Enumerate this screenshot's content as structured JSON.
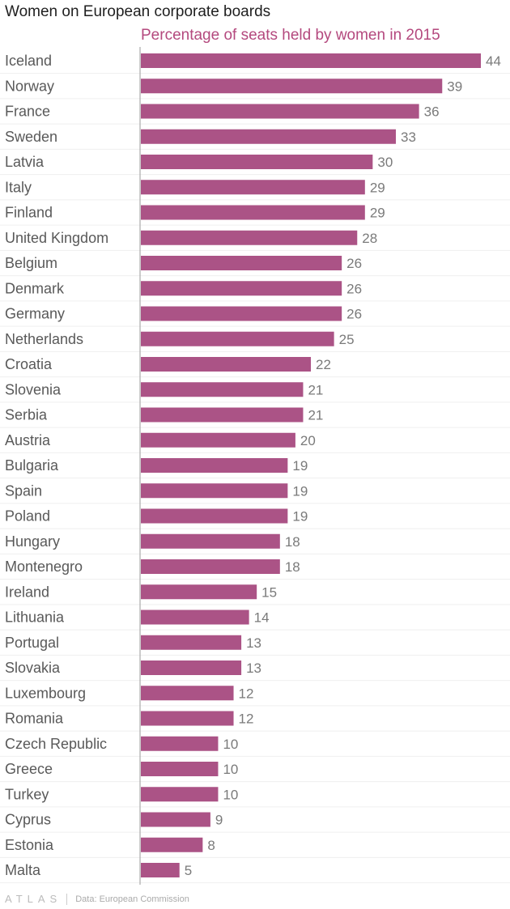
{
  "header": {
    "title": "Women on European corporate boards"
  },
  "chart_data": {
    "type": "bar",
    "orientation": "horizontal",
    "title": "Women on European corporate boards",
    "subtitle": "Percentage of seats held by women in 2015",
    "categories": [
      "Iceland",
      "Norway",
      "France",
      "Sweden",
      "Latvia",
      "Italy",
      "Finland",
      "United Kingdom",
      "Belgium",
      "Denmark",
      "Germany",
      "Netherlands",
      "Croatia",
      "Slovenia",
      "Serbia",
      "Austria",
      "Bulgaria",
      "Spain",
      "Poland",
      "Hungary",
      "Montenegro",
      "Ireland",
      "Lithuania",
      "Portugal",
      "Slovakia",
      "Luxembourg",
      "Romania",
      "Czech Republic",
      "Greece",
      "Turkey",
      "Cyprus",
      "Estonia",
      "Malta"
    ],
    "values": [
      44,
      39,
      36,
      33,
      30,
      29,
      29,
      28,
      26,
      26,
      26,
      25,
      22,
      21,
      21,
      20,
      19,
      19,
      19,
      18,
      18,
      15,
      14,
      13,
      13,
      12,
      12,
      10,
      10,
      10,
      9,
      8,
      5
    ],
    "xlim": [
      0,
      44
    ],
    "bar_color": "#ab5386",
    "grid": false,
    "data_labels": true
  },
  "footer": {
    "logo": "ATLAS",
    "source": "Data: European Commission"
  }
}
